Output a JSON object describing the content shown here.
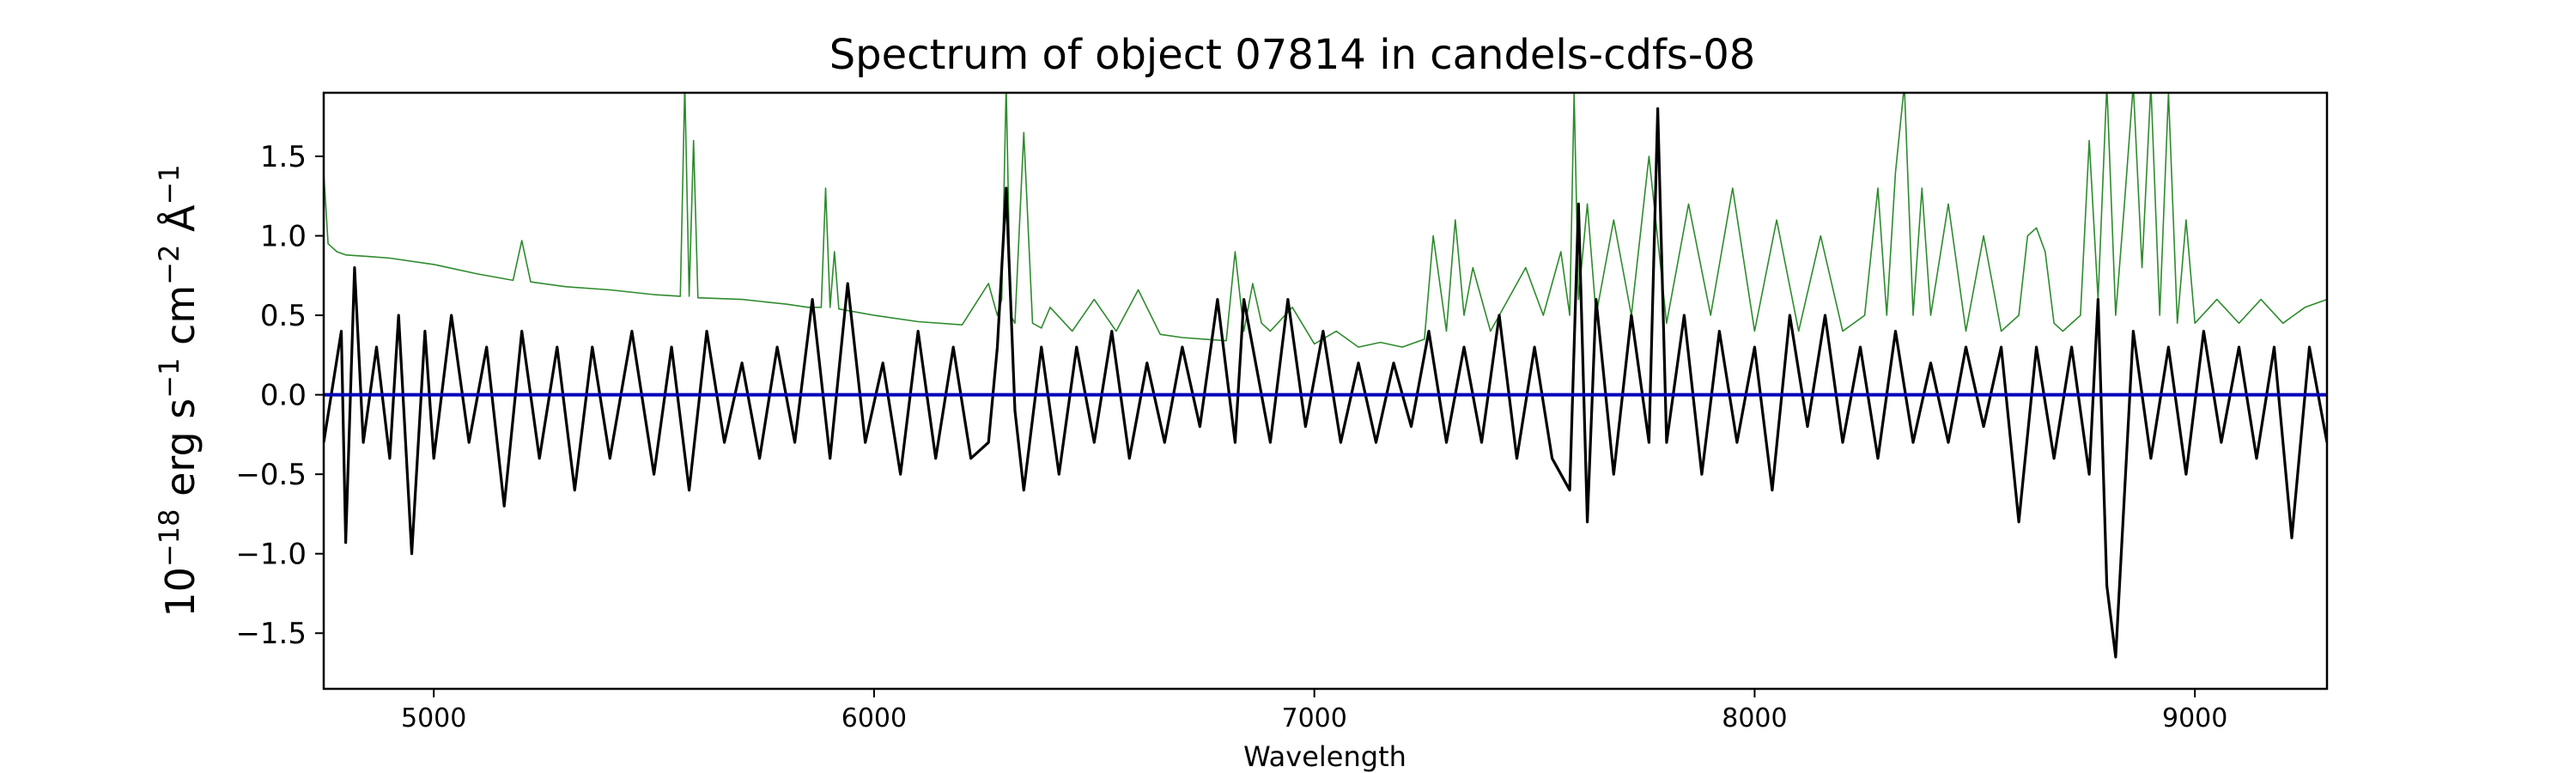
{
  "chart_data": {
    "type": "line",
    "title": "Spectrum of object 07814 in candels-cdfs-08",
    "xlabel": "Wavelength",
    "ylabel": {
      "base": "10",
      "exp1": "−18",
      "erg": " erg s",
      "exp2": "−1",
      "cm": " cm",
      "exp3": "−2",
      "ang": " Å",
      "exp4": "−1"
    },
    "xlim": [
      4750,
      9300
    ],
    "ylim": [
      -1.85,
      1.9
    ],
    "x_ticks": [
      5000,
      6000,
      7000,
      8000,
      9000
    ],
    "x_tick_labels": [
      "5000",
      "6000",
      "7000",
      "8000",
      "9000"
    ],
    "y_ticks": [
      -1.5,
      -1.0,
      -0.5,
      0.0,
      0.5,
      1.0,
      1.5
    ],
    "y_tick_labels": [
      "−1.5",
      "−1.0",
      "−0.5",
      "0.0",
      "0.5",
      "1.0",
      "1.5"
    ],
    "grid": false,
    "legend": "none",
    "colors": {
      "flux": "#000000",
      "error": "#2e8b2e",
      "zero": "#0000bb"
    },
    "series": [
      {
        "role": "flux",
        "x": [
          4750,
          4790,
          4800,
          4820,
          4840,
          4870,
          4900,
          4920,
          4950,
          4980,
          5000,
          5040,
          5080,
          5120,
          5160,
          5200,
          5240,
          5280,
          5320,
          5360,
          5400,
          5450,
          5500,
          5540,
          5580,
          5620,
          5660,
          5700,
          5740,
          5780,
          5820,
          5860,
          5900,
          5940,
          5980,
          6020,
          6060,
          6100,
          6140,
          6180,
          6220,
          6260,
          6280,
          6300,
          6320,
          6340,
          6380,
          6420,
          6460,
          6500,
          6540,
          6580,
          6620,
          6660,
          6700,
          6740,
          6780,
          6820,
          6840,
          6860,
          6900,
          6940,
          6980,
          7020,
          7060,
          7100,
          7140,
          7180,
          7220,
          7260,
          7300,
          7340,
          7380,
          7420,
          7460,
          7500,
          7540,
          7580,
          7600,
          7620,
          7640,
          7680,
          7720,
          7760,
          7780,
          7800,
          7840,
          7880,
          7920,
          7960,
          8000,
          8040,
          8080,
          8120,
          8160,
          8200,
          8240,
          8280,
          8320,
          8360,
          8400,
          8440,
          8480,
          8520,
          8560,
          8600,
          8640,
          8680,
          8720,
          8760,
          8780,
          8800,
          8820,
          8860,
          8900,
          8940,
          8980,
          9020,
          9060,
          9100,
          9140,
          9180,
          9220,
          9260,
          9300
        ],
        "y": [
          -0.3,
          0.4,
          -0.93,
          0.8,
          -0.3,
          0.3,
          -0.4,
          0.5,
          -1.0,
          0.4,
          -0.4,
          0.5,
          -0.3,
          0.3,
          -0.7,
          0.4,
          -0.4,
          0.3,
          -0.6,
          0.3,
          -0.4,
          0.4,
          -0.5,
          0.3,
          -0.6,
          0.4,
          -0.3,
          0.2,
          -0.4,
          0.3,
          -0.3,
          0.6,
          -0.4,
          0.7,
          -0.3,
          0.2,
          -0.5,
          0.4,
          -0.4,
          0.3,
          -0.4,
          -0.3,
          0.3,
          1.3,
          -0.1,
          -0.6,
          0.3,
          -0.5,
          0.3,
          -0.3,
          0.4,
          -0.4,
          0.2,
          -0.3,
          0.3,
          -0.2,
          0.6,
          -0.3,
          0.6,
          0.3,
          -0.3,
          0.6,
          -0.2,
          0.4,
          -0.3,
          0.2,
          -0.3,
          0.2,
          -0.2,
          0.4,
          -0.3,
          0.3,
          -0.3,
          0.5,
          -0.4,
          0.3,
          -0.4,
          -0.6,
          1.2,
          -0.8,
          0.6,
          -0.5,
          0.5,
          -0.3,
          1.8,
          -0.3,
          0.5,
          -0.5,
          0.4,
          -0.3,
          0.3,
          -0.6,
          0.5,
          -0.2,
          0.5,
          -0.3,
          0.3,
          -0.4,
          0.4,
          -0.3,
          0.2,
          -0.3,
          0.3,
          -0.2,
          0.3,
          -0.8,
          0.3,
          -0.4,
          0.3,
          -0.5,
          0.6,
          -1.2,
          -1.65,
          0.4,
          -0.4,
          0.3,
          -0.5,
          0.4,
          -0.3,
          0.3,
          -0.4,
          0.3,
          -0.9,
          0.3,
          -0.3
        ]
      },
      {
        "role": "error",
        "x": [
          4750,
          4760,
          4780,
          4800,
          4850,
          4900,
          5000,
          5100,
          5180,
          5200,
          5220,
          5300,
          5400,
          5500,
          5560,
          5570,
          5580,
          5590,
          5600,
          5700,
          5800,
          5850,
          5880,
          5890,
          5900,
          5910,
          5920,
          6000,
          6100,
          6200,
          6260,
          6280,
          6290,
          6300,
          6310,
          6320,
          6340,
          6360,
          6380,
          6400,
          6450,
          6500,
          6550,
          6600,
          6650,
          6700,
          6750,
          6800,
          6820,
          6840,
          6860,
          6880,
          6900,
          6950,
          7000,
          7050,
          7100,
          7150,
          7200,
          7250,
          7270,
          7300,
          7320,
          7340,
          7360,
          7400,
          7440,
          7480,
          7520,
          7560,
          7580,
          7590,
          7600,
          7620,
          7640,
          7680,
          7720,
          7760,
          7800,
          7850,
          7900,
          7950,
          8000,
          8050,
          8100,
          8150,
          8200,
          8250,
          8280,
          8300,
          8320,
          8340,
          8360,
          8380,
          8400,
          8440,
          8480,
          8520,
          8560,
          8600,
          8620,
          8640,
          8660,
          8680,
          8700,
          8740,
          8760,
          8780,
          8800,
          8820,
          8840,
          8860,
          8880,
          8900,
          8920,
          8940,
          8960,
          8980,
          9000,
          9050,
          9100,
          9150,
          9200,
          9250,
          9300
        ],
        "y": [
          1.4,
          0.95,
          0.9,
          0.88,
          0.87,
          0.86,
          0.82,
          0.76,
          0.72,
          0.97,
          0.71,
          0.68,
          0.66,
          0.63,
          0.62,
          1.95,
          0.62,
          1.6,
          0.61,
          0.6,
          0.57,
          0.55,
          0.55,
          1.3,
          0.55,
          0.9,
          0.54,
          0.5,
          0.46,
          0.44,
          0.7,
          0.5,
          0.6,
          1.95,
          0.5,
          0.45,
          1.65,
          0.45,
          0.42,
          0.55,
          0.4,
          0.6,
          0.4,
          0.66,
          0.38,
          0.36,
          0.35,
          0.34,
          0.9,
          0.4,
          0.7,
          0.45,
          0.4,
          0.55,
          0.32,
          0.4,
          0.3,
          0.33,
          0.3,
          0.35,
          1.0,
          0.4,
          1.1,
          0.5,
          0.8,
          0.4,
          0.6,
          0.8,
          0.5,
          0.9,
          0.5,
          1.9,
          0.6,
          1.2,
          0.5,
          1.1,
          0.5,
          1.5,
          0.45,
          1.2,
          0.5,
          1.3,
          0.4,
          1.1,
          0.4,
          1.0,
          0.4,
          0.5,
          1.3,
          0.5,
          1.4,
          1.95,
          0.5,
          1.3,
          0.5,
          1.2,
          0.4,
          1.0,
          0.4,
          0.5,
          1.0,
          1.05,
          0.9,
          0.45,
          0.4,
          0.5,
          1.6,
          0.6,
          1.95,
          0.5,
          1.2,
          1.95,
          0.8,
          1.95,
          0.5,
          1.9,
          0.45,
          1.1,
          0.45,
          0.6,
          0.45,
          0.6,
          0.45,
          0.55,
          0.6
        ]
      },
      {
        "role": "zero",
        "x": [
          4750,
          9300
        ],
        "y": [
          0.0,
          0.0
        ]
      }
    ]
  }
}
